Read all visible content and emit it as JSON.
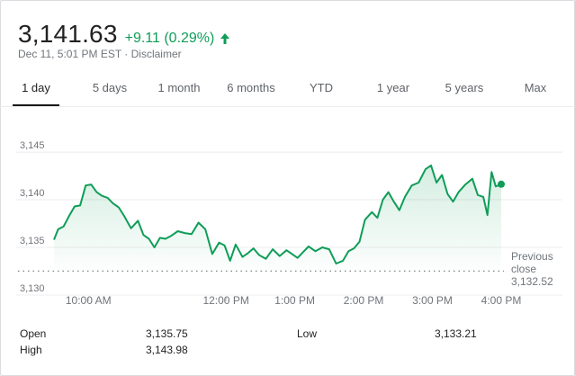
{
  "header": {
    "price": "3,141.63",
    "change": "+9.11 (0.29%)",
    "meta": "Dec 11, 5:01 PM EST · Disclaimer"
  },
  "tabs": [
    {
      "label": "1 day",
      "active": true
    },
    {
      "label": "5 days",
      "active": false
    },
    {
      "label": "1 month",
      "active": false
    },
    {
      "label": "6 months",
      "active": false
    },
    {
      "label": "YTD",
      "active": false
    },
    {
      "label": "1 year",
      "active": false
    },
    {
      "label": "5 years",
      "active": false
    },
    {
      "label": "Max",
      "active": false
    }
  ],
  "colors": {
    "line": "#0f9d58",
    "up": "#0f9d58",
    "text": "#222222",
    "muted": "#70757a"
  },
  "chart_data": {
    "type": "area",
    "y_ticks": [
      "3,145",
      "3,140",
      "3,135",
      "3,130"
    ],
    "y_tick_values": [
      3145,
      3140,
      3135,
      3130
    ],
    "ylim": [
      3130,
      3146.8
    ],
    "x_ticks": [
      "10:00 AM",
      "12:00 PM",
      "1:00 PM",
      "2:00 PM",
      "3:00 PM",
      "4:00 PM"
    ],
    "x_tick_values": [
      10.0,
      12.0,
      13.0,
      14.0,
      15.0,
      16.0
    ],
    "xlim": [
      9.5,
      16.0
    ],
    "previous_close": {
      "label_line1": "Previous",
      "label_line2": "close",
      "value": "3,132.52",
      "numeric": 3132.52
    },
    "series": [
      {
        "x": [
          9.5,
          9.56,
          9.64,
          9.72,
          9.8,
          9.88,
          9.96,
          10.04,
          10.12,
          10.2,
          10.28,
          10.36,
          10.44,
          10.52,
          10.62,
          10.72,
          10.8,
          10.88,
          10.96,
          11.04,
          11.12,
          11.2,
          11.3,
          11.4,
          11.5,
          11.6,
          11.7,
          11.8,
          11.9,
          11.98,
          12.06,
          12.14,
          12.24,
          12.32,
          12.4,
          12.48,
          12.58,
          12.68,
          12.78,
          12.88,
          12.96,
          13.04,
          13.12,
          13.2,
          13.3,
          13.4,
          13.5,
          13.6,
          13.7,
          13.78,
          13.86,
          13.94,
          14.02,
          14.12,
          14.2,
          14.28,
          14.36,
          14.44,
          14.52,
          14.6,
          14.7,
          14.8,
          14.9,
          14.98,
          15.06,
          15.14,
          15.22,
          15.3,
          15.38,
          15.48,
          15.58,
          15.66,
          15.74,
          15.8,
          15.86,
          15.92,
          16.0
        ],
        "y": [
          3135.8,
          3136.9,
          3137.2,
          3138.3,
          3139.3,
          3139.4,
          3141.5,
          3141.6,
          3140.8,
          3140.4,
          3140.2,
          3139.6,
          3139.2,
          3138.3,
          3137.0,
          3137.8,
          3136.3,
          3135.9,
          3135.0,
          3136.0,
          3135.9,
          3136.2,
          3136.7,
          3136.5,
          3136.4,
          3137.6,
          3136.9,
          3134.3,
          3135.5,
          3135.2,
          3133.6,
          3135.3,
          3134.0,
          3134.4,
          3134.9,
          3134.2,
          3133.8,
          3134.8,
          3134.1,
          3134.7,
          3134.3,
          3133.9,
          3134.5,
          3135.1,
          3134.6,
          3135.0,
          3134.8,
          3133.3,
          3133.6,
          3134.6,
          3134.9,
          3135.6,
          3137.9,
          3138.7,
          3138.1,
          3140.0,
          3140.8,
          3139.8,
          3138.9,
          3140.3,
          3141.5,
          3141.8,
          3143.2,
          3143.6,
          3141.8,
          3142.6,
          3140.6,
          3139.8,
          3140.8,
          3141.6,
          3142.2,
          3140.5,
          3140.3,
          3138.4,
          3142.9,
          3141.4,
          3141.6
        ]
      }
    ],
    "current_point": {
      "x": 16.0,
      "y": 3141.63
    }
  },
  "stats": {
    "open_label": "Open",
    "open_value": "3,135.75",
    "high_label": "High",
    "high_value": "3,143.98",
    "low_label": "Low",
    "low_value": "3,133.21"
  }
}
